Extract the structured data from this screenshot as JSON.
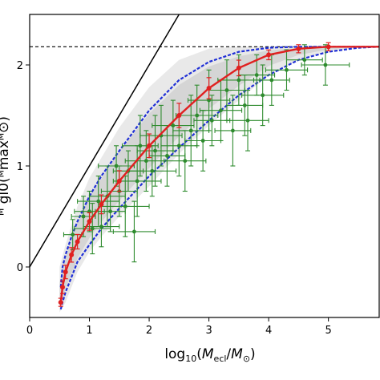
{
  "chart_data": {
    "type": "scatter",
    "xlabel": {
      "base": "log",
      "base_sub": "10",
      "paren_open": "(",
      "m1": "M",
      "m1_sub": "ecl",
      "slash": "/",
      "m2": "M",
      "m2_sub": "⊙",
      "paren_close": ")"
    },
    "ylabel_visible": "ᴹ gl0(ᴹmaxᴹ⊙)",
    "xlim": [
      0,
      5.85
    ],
    "ylim": [
      -0.5,
      2.5
    ],
    "x_ticks": [
      0,
      1,
      2,
      3,
      4,
      5
    ],
    "y_ticks": [
      0,
      1,
      2
    ],
    "grid": false,
    "legend": "none",
    "colors": {
      "observed": "#2e8b2e",
      "median": "#e02020",
      "envelope": "#1f2fd6",
      "shading": "#9a9a9a",
      "reference": "#000000"
    },
    "upper_limit_y": 2.18,
    "identity_line": {
      "x": [
        0,
        2.5
      ],
      "y": [
        0,
        2.5
      ]
    },
    "shaded_band": {
      "x": [
        0.5,
        0.6,
        0.8,
        1.0,
        1.2,
        1.5,
        2.0,
        2.5,
        3.0,
        3.5,
        4.0,
        4.5,
        5.0,
        5.5,
        5.85
      ],
      "lo": [
        -0.45,
        -0.35,
        -0.05,
        0.15,
        0.3,
        0.5,
        0.8,
        1.12,
        1.4,
        1.65,
        1.9,
        2.05,
        2.13,
        2.17,
        2.18
      ],
      "hi": [
        0.0,
        0.22,
        0.6,
        0.88,
        1.08,
        1.38,
        1.78,
        2.05,
        2.16,
        2.18,
        2.18,
        2.18,
        2.18,
        2.18,
        2.18
      ]
    },
    "median_curve": {
      "x": [
        0.52,
        0.55,
        0.6,
        0.7,
        0.8,
        1.0,
        1.2,
        1.5,
        2.0,
        2.5,
        3.0,
        3.5,
        4.0,
        4.5,
        5.0,
        5.5,
        5.85
      ],
      "y": [
        -0.35,
        -0.2,
        -0.05,
        0.12,
        0.25,
        0.45,
        0.62,
        0.85,
        1.2,
        1.5,
        1.77,
        1.97,
        2.1,
        2.16,
        2.18,
        2.18,
        2.18
      ]
    },
    "upper_envelope": {
      "x": [
        0.52,
        0.55,
        0.6,
        0.7,
        0.8,
        1.0,
        1.2,
        1.5,
        2.0,
        2.5,
        3.0,
        3.5,
        4.0,
        4.5,
        5.0,
        5.85
      ],
      "y": [
        -0.2,
        0.0,
        0.12,
        0.3,
        0.45,
        0.7,
        0.9,
        1.15,
        1.55,
        1.85,
        2.03,
        2.13,
        2.17,
        2.18,
        2.18,
        2.18
      ]
    },
    "lower_envelope": {
      "x": [
        0.52,
        0.55,
        0.6,
        0.7,
        0.8,
        1.0,
        1.2,
        1.5,
        2.0,
        2.5,
        3.0,
        3.5,
        4.0,
        4.5,
        5.0,
        5.5,
        5.85
      ],
      "y": [
        -0.42,
        -0.35,
        -0.25,
        -0.1,
        0.05,
        0.22,
        0.38,
        0.58,
        0.9,
        1.18,
        1.45,
        1.7,
        1.9,
        2.05,
        2.13,
        2.17,
        2.18
      ]
    },
    "observed_points": [
      {
        "x": 0.72,
        "y": 0.32,
        "xerr": 0.15,
        "yerr": 0.15
      },
      {
        "x": 0.9,
        "y": 0.5,
        "xerr": 0.2,
        "yerr": 0.2
      },
      {
        "x": 1.0,
        "y": 0.55,
        "xerr": 0.25,
        "yerr": 0.2
      },
      {
        "x": 1.05,
        "y": 0.38,
        "xerr": 0.3,
        "yerr": 0.25
      },
      {
        "x": 1.15,
        "y": 0.65,
        "xerr": 0.35,
        "yerr": 0.25
      },
      {
        "x": 1.2,
        "y": 0.4,
        "xerr": 0.3,
        "yerr": 0.2
      },
      {
        "x": 1.3,
        "y": 0.7,
        "xerr": 0.3,
        "yerr": 0.3
      },
      {
        "x": 1.35,
        "y": 0.55,
        "xerr": 0.25,
        "yerr": 0.2
      },
      {
        "x": 1.45,
        "y": 1.0,
        "xerr": 0.3,
        "yerr": 0.2
      },
      {
        "x": 1.5,
        "y": 0.75,
        "xerr": 0.3,
        "yerr": 0.25
      },
      {
        "x": 1.6,
        "y": 0.6,
        "xerr": 0.4,
        "yerr": 0.3
      },
      {
        "x": 1.65,
        "y": 0.95,
        "xerr": 0.25,
        "yerr": 0.2
      },
      {
        "x": 1.75,
        "y": 0.35,
        "xerr": 0.35,
        "yerr": 0.3
      },
      {
        "x": 1.8,
        "y": 0.85,
        "xerr": 0.4,
        "yerr": 0.35
      },
      {
        "x": 1.85,
        "y": 1.2,
        "xerr": 0.3,
        "yerr": 0.3
      },
      {
        "x": 1.95,
        "y": 1.05,
        "xerr": 0.35,
        "yerr": 0.3
      },
      {
        "x": 2.05,
        "y": 0.95,
        "xerr": 0.4,
        "yerr": 0.25
      },
      {
        "x": 2.1,
        "y": 1.15,
        "xerr": 0.3,
        "yerr": 0.35
      },
      {
        "x": 2.2,
        "y": 1.3,
        "xerr": 0.35,
        "yerr": 0.3
      },
      {
        "x": 2.3,
        "y": 1.1,
        "xerr": 0.3,
        "yerr": 0.3
      },
      {
        "x": 2.4,
        "y": 1.4,
        "xerr": 0.35,
        "yerr": 0.25
      },
      {
        "x": 2.5,
        "y": 1.2,
        "xerr": 0.3,
        "yerr": 0.3
      },
      {
        "x": 2.6,
        "y": 1.05,
        "xerr": 0.35,
        "yerr": 0.3
      },
      {
        "x": 2.7,
        "y": 1.35,
        "xerr": 0.3,
        "yerr": 0.35
      },
      {
        "x": 2.8,
        "y": 1.5,
        "xerr": 0.35,
        "yerr": 0.3
      },
      {
        "x": 2.9,
        "y": 1.25,
        "xerr": 0.3,
        "yerr": 0.3
      },
      {
        "x": 3.0,
        "y": 1.65,
        "xerr": 0.35,
        "yerr": 0.3
      },
      {
        "x": 3.05,
        "y": 1.45,
        "xerr": 0.3,
        "yerr": 0.25
      },
      {
        "x": 3.2,
        "y": 1.55,
        "xerr": 0.35,
        "yerr": 0.3
      },
      {
        "x": 3.3,
        "y": 1.75,
        "xerr": 0.3,
        "yerr": 0.3
      },
      {
        "x": 3.4,
        "y": 1.35,
        "xerr": 0.3,
        "yerr": 0.35
      },
      {
        "x": 3.5,
        "y": 1.85,
        "xerr": 0.35,
        "yerr": 0.25
      },
      {
        "x": 3.6,
        "y": 1.6,
        "xerr": 0.3,
        "yerr": 0.3
      },
      {
        "x": 3.65,
        "y": 1.45,
        "xerr": 0.35,
        "yerr": 0.3
      },
      {
        "x": 3.8,
        "y": 1.9,
        "xerr": 0.3,
        "yerr": 0.2
      },
      {
        "x": 3.9,
        "y": 1.7,
        "xerr": 0.35,
        "yerr": 0.3
      },
      {
        "x": 4.05,
        "y": 1.85,
        "xerr": 0.3,
        "yerr": 0.25
      },
      {
        "x": 4.3,
        "y": 1.95,
        "xerr": 0.35,
        "yerr": 0.2
      },
      {
        "x": 4.6,
        "y": 2.05,
        "xerr": 0.3,
        "yerr": 0.15
      },
      {
        "x": 4.95,
        "y": 2.0,
        "xerr": 0.4,
        "yerr": 0.2
      }
    ]
  }
}
